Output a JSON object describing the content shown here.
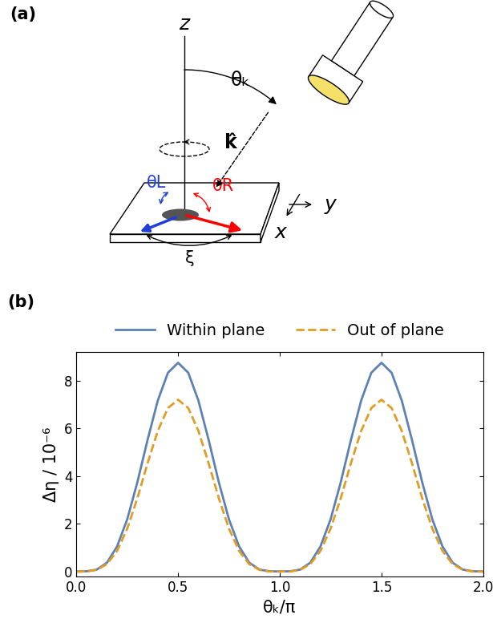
{
  "panel_a": {
    "label": "(a)",
    "texts": {
      "z": "z",
      "theta_k": "θₖ",
      "k_hat": "k̂",
      "theta_L": "θL",
      "theta_R": "θR",
      "xi": "ξ",
      "x": "x",
      "y": "y"
    }
  },
  "panel_b_label": "(b)",
  "chart_data": {
    "type": "line",
    "x_label": "θₖ/π",
    "y_label": "Δη / 10⁻⁶",
    "x": [
      0.0,
      0.05,
      0.1,
      0.15,
      0.2,
      0.25,
      0.3,
      0.35,
      0.4,
      0.45,
      0.5,
      0.55,
      0.6,
      0.65,
      0.7,
      0.75,
      0.8,
      0.85,
      0.9,
      0.95,
      1.0,
      1.05,
      1.1,
      1.15,
      1.2,
      1.25,
      1.3,
      1.35,
      1.4,
      1.45,
      1.5,
      1.55,
      1.6,
      1.65,
      1.7,
      1.75,
      1.8,
      1.85,
      1.9,
      1.95,
      2.0
    ],
    "series": [
      {
        "name": "Within plane",
        "color": "#5e81b5",
        "line_style": "solid",
        "values": [
          0,
          0.01,
          0.08,
          0.37,
          1.05,
          2.19,
          3.75,
          5.52,
          7.16,
          8.33,
          8.75,
          8.33,
          7.16,
          5.52,
          3.75,
          2.19,
          1.05,
          0.37,
          0.08,
          0.01,
          0,
          0.01,
          0.08,
          0.37,
          1.05,
          2.19,
          3.75,
          5.52,
          7.16,
          8.33,
          8.75,
          8.33,
          7.16,
          5.52,
          3.75,
          2.19,
          1.05,
          0.37,
          0.08,
          0.01,
          0
        ]
      },
      {
        "name": "Out of plane",
        "color": "#e19c24",
        "line_style": "dashed",
        "values": [
          0,
          0,
          0.07,
          0.31,
          0.86,
          1.8,
          3.08,
          4.54,
          5.89,
          6.85,
          7.2,
          6.85,
          5.89,
          4.54,
          3.08,
          1.8,
          0.86,
          0.31,
          0.07,
          0,
          0,
          0,
          0.07,
          0.31,
          0.86,
          1.8,
          3.08,
          4.54,
          5.89,
          6.85,
          7.2,
          6.85,
          5.89,
          4.54,
          3.08,
          1.8,
          0.86,
          0.31,
          0.07,
          0,
          0
        ]
      }
    ],
    "xlim": [
      0,
      2
    ],
    "ylim": [
      -0.2,
      9.2
    ],
    "xticks": [
      {
        "value": 0,
        "label": "0.0"
      },
      {
        "value": 0.5,
        "label": "0.5"
      },
      {
        "value": 1,
        "label": "1.0"
      },
      {
        "value": 1.5,
        "label": "1.5"
      },
      {
        "value": 2,
        "label": "2.0"
      }
    ],
    "yticks": [
      0,
      2,
      4,
      6,
      8
    ],
    "legend": "lower center"
  }
}
